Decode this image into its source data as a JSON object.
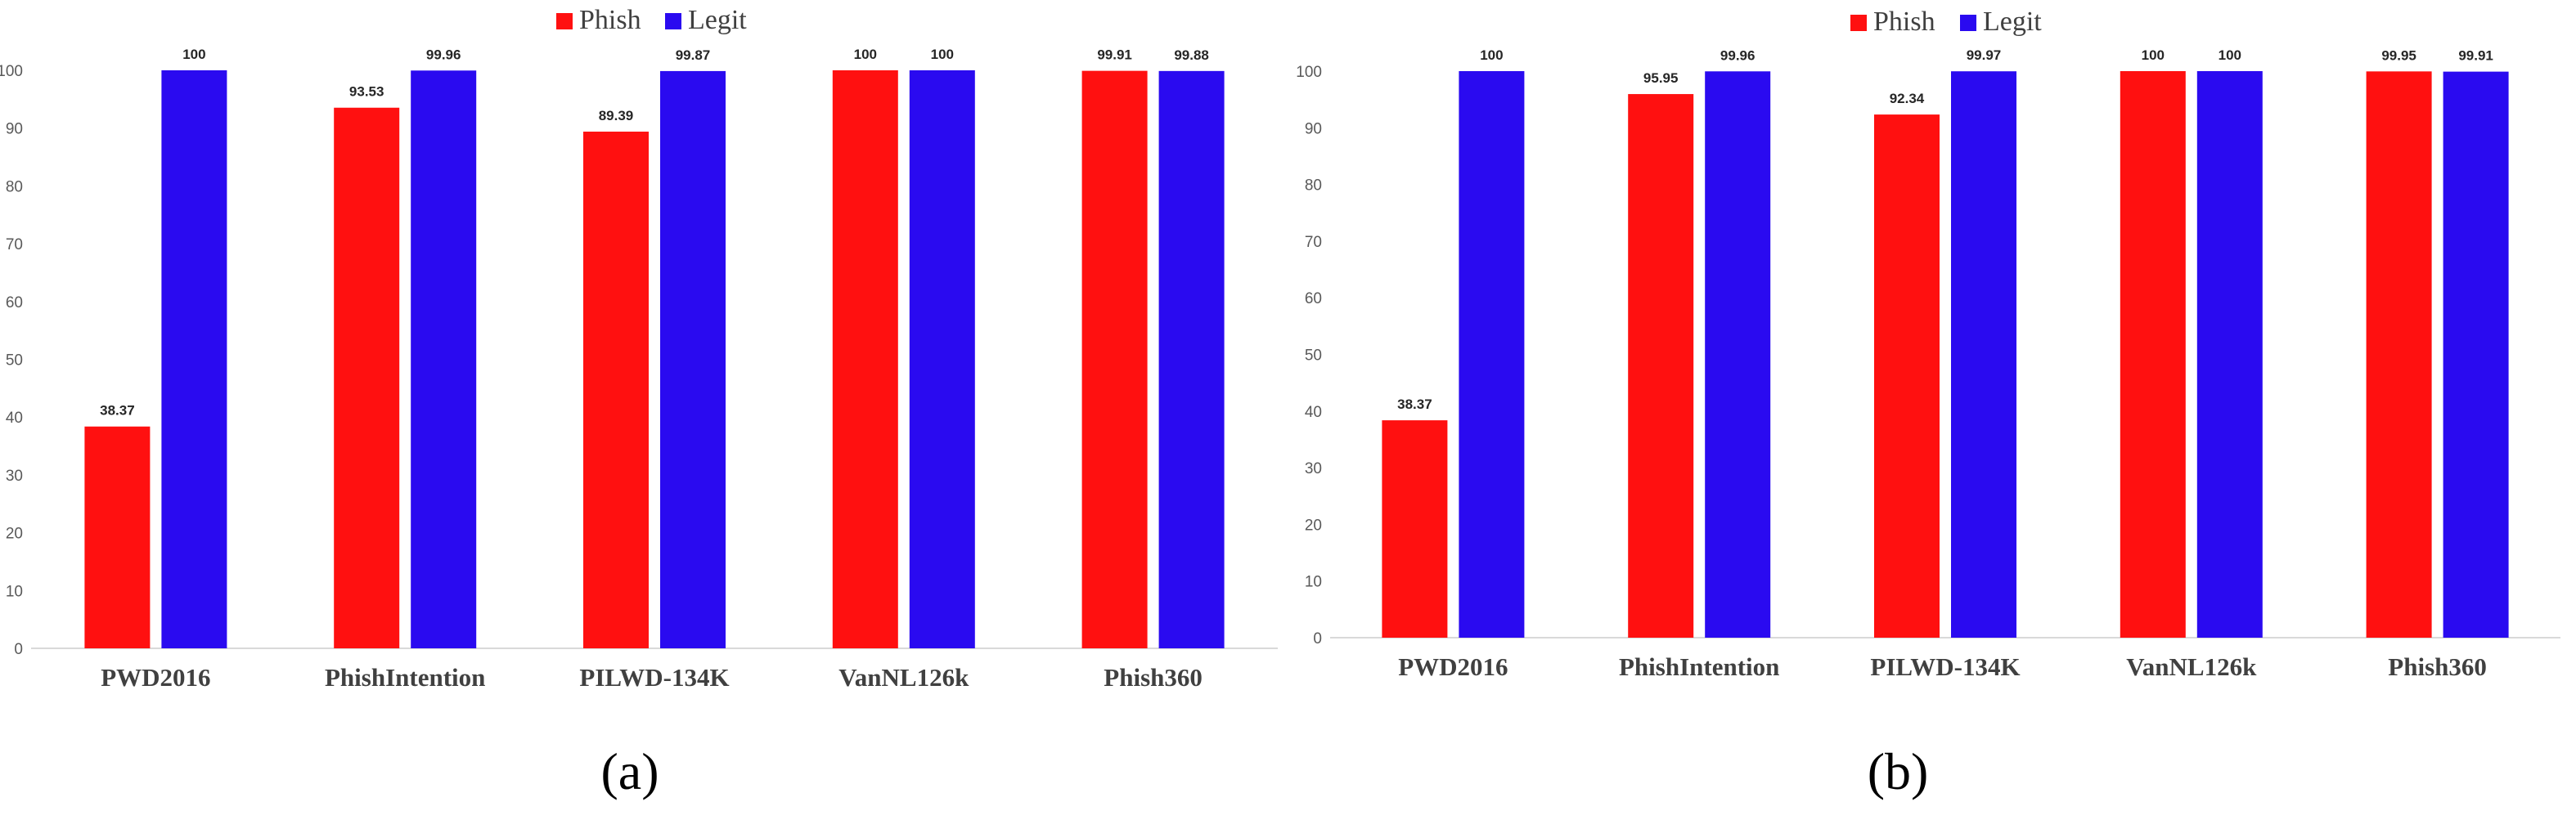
{
  "chart_data": [
    {
      "type": "bar",
      "panel_label": "(a)",
      "categories": [
        "PWD2016",
        "PhishIntention",
        "PILWD-134K",
        "VanNL126k",
        "Phish360"
      ],
      "series": [
        {
          "name": "Phish",
          "color": "#ff1010",
          "values": [
            38.37,
            93.53,
            89.39,
            100,
            99.91
          ]
        },
        {
          "name": "Legit",
          "color": "#2a0af0",
          "values": [
            100,
            99.96,
            99.87,
            100,
            99.88
          ]
        }
      ],
      "yticks": [
        "0",
        "10",
        "20",
        "30",
        "40",
        "50",
        "60",
        "70",
        "80",
        "90",
        "100"
      ],
      "ylim": [
        0,
        100
      ],
      "grid": false,
      "legend": "top-center"
    },
    {
      "type": "bar",
      "panel_label": "(b)",
      "categories": [
        "PWD2016",
        "PhishIntention",
        "PILWD-134K",
        "VanNL126k",
        "Phish360"
      ],
      "series": [
        {
          "name": "Phish",
          "color": "#ff1010",
          "values": [
            38.37,
            95.95,
            92.34,
            100,
            99.95
          ]
        },
        {
          "name": "Legit",
          "color": "#2a0af0",
          "values": [
            100,
            99.96,
            99.97,
            100,
            99.91
          ]
        }
      ],
      "yticks": [
        "0",
        "10",
        "20",
        "30",
        "40",
        "50",
        "60",
        "70",
        "80",
        "90",
        "100"
      ],
      "ylim": [
        0,
        100
      ],
      "grid": false,
      "legend": "top-center"
    }
  ]
}
